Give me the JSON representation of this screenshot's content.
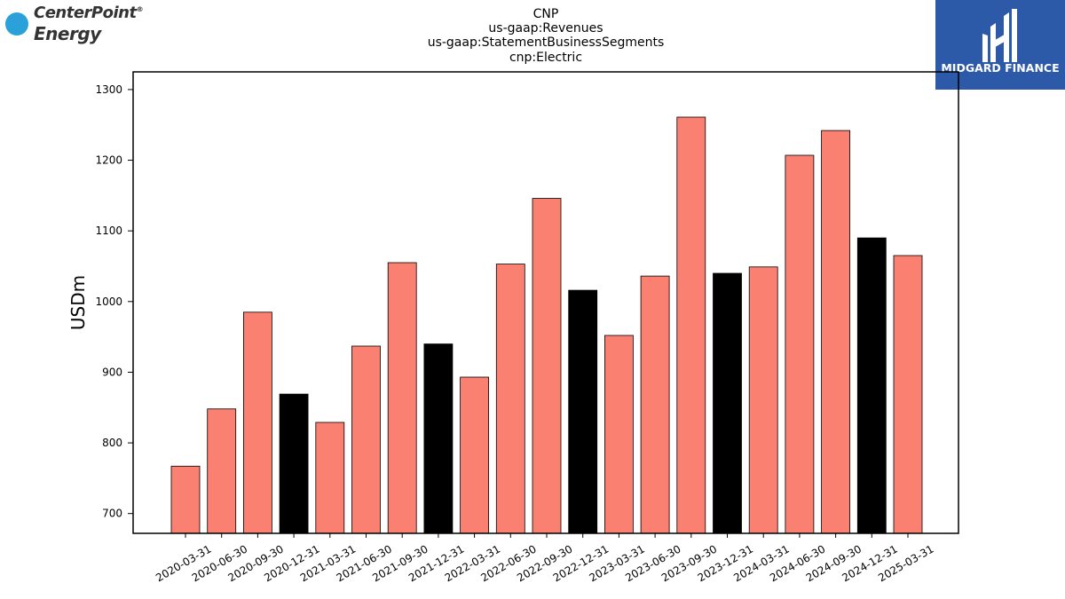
{
  "titles": [
    "CNP",
    "us-gaap:Revenues",
    "us-gaap:StatementBusinessSegments",
    "cnp:Electric"
  ],
  "logos": {
    "left_line1": "CenterPoint",
    "left_tm": "®",
    "left_line2": "Energy",
    "right": "MIDGARD FINANCE"
  },
  "colors": {
    "quarter_bar": "#fa8072",
    "year_end_bar": "#000000",
    "logo_blue": "#2aa1d8",
    "mf_background": "#2d5aa8"
  },
  "chart_data": {
    "type": "bar",
    "title": "CNP\nus-gaap:Revenues\nus-gaap:StatementBusinessSegments\ncnp:Electric",
    "xlabel": "",
    "ylabel": "USDm",
    "ylim": [
      672,
      1325
    ],
    "yticks": [
      700,
      800,
      900,
      1000,
      1100,
      1200,
      1300
    ],
    "categories": [
      "2020-03-31",
      "2020-06-30",
      "2020-09-30",
      "2020-12-31",
      "2021-03-31",
      "2021-06-30",
      "2021-09-30",
      "2021-12-31",
      "2022-03-31",
      "2022-06-30",
      "2022-09-30",
      "2022-12-31",
      "2023-03-31",
      "2023-06-30",
      "2023-09-30",
      "2023-12-31",
      "2024-03-31",
      "2024-06-30",
      "2024-09-30",
      "2024-12-31",
      "2025-03-31"
    ],
    "values": [
      767,
      848,
      985,
      869,
      829,
      937,
      1055,
      940,
      893,
      1053,
      1146,
      1016,
      952,
      1036,
      1261,
      1040,
      1049,
      1207,
      1242,
      1090,
      1065
    ],
    "year_end": [
      false,
      false,
      false,
      true,
      false,
      false,
      false,
      true,
      false,
      false,
      false,
      true,
      false,
      false,
      false,
      true,
      false,
      false,
      false,
      true,
      false
    ],
    "grid": false,
    "legend": "none"
  }
}
